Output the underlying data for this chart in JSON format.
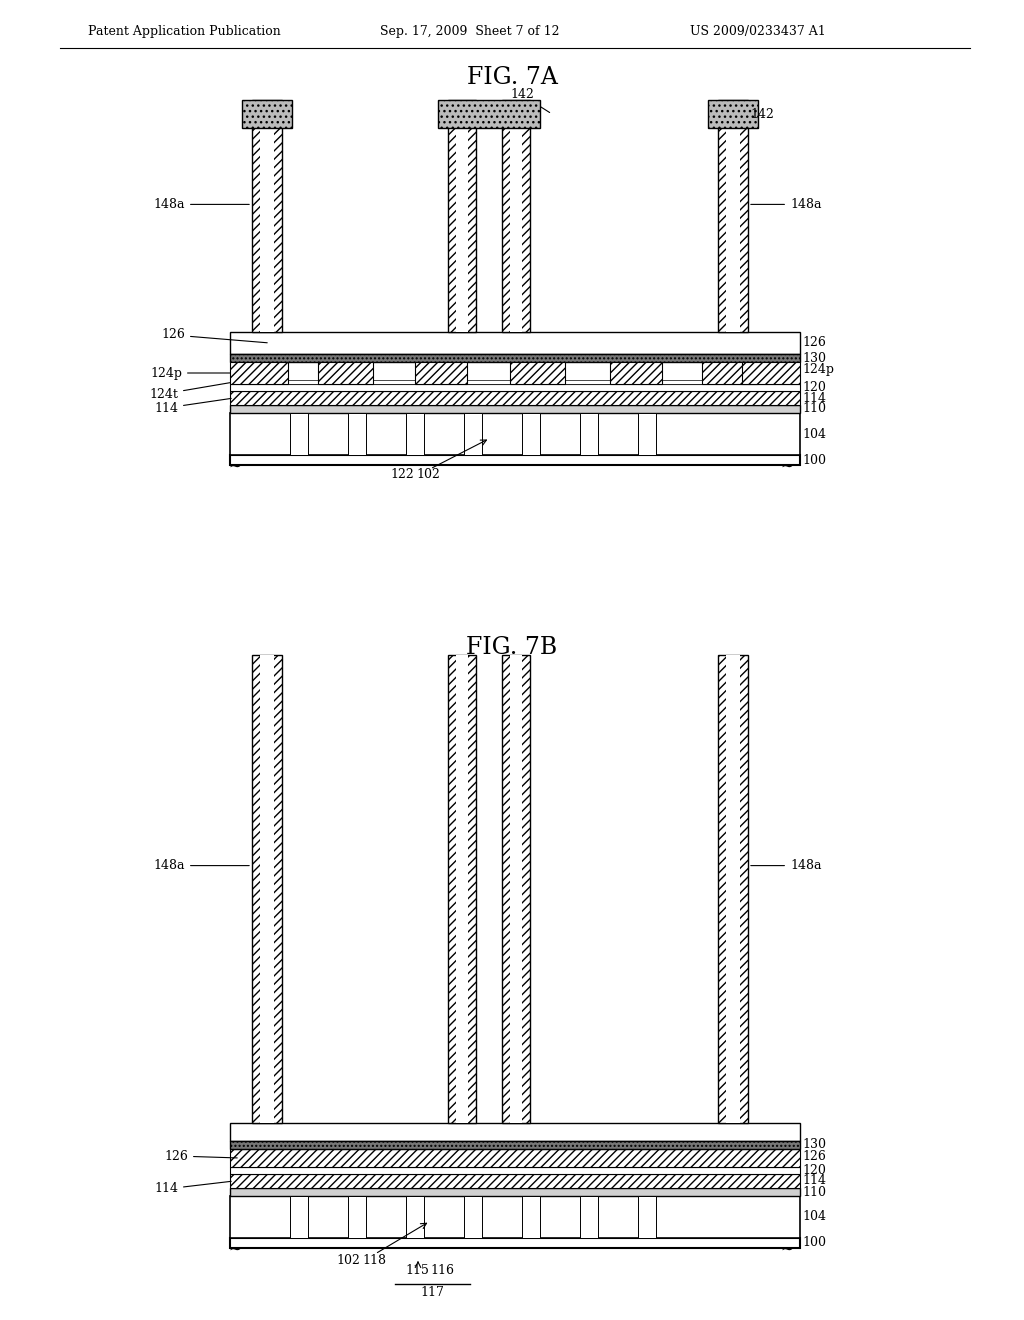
{
  "bg_color": "#ffffff",
  "header_text": "Patent Application Publication",
  "header_date": "Sep. 17, 2009  Sheet 7 of 12",
  "header_patent": "US 2009/0233437 A1",
  "fig7a_title": "FIG. 7A",
  "fig7b_title": "FIG. 7B"
}
